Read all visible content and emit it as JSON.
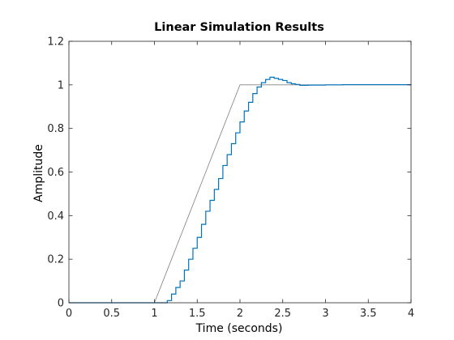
{
  "chart_data": {
    "type": "line",
    "title": "Linear Simulation Results",
    "xlabel": "Time (seconds)",
    "ylabel": "Amplitude",
    "xlim": [
      0,
      4
    ],
    "ylim": [
      0,
      1.2
    ],
    "xticks": [
      0,
      0.5,
      1,
      1.5,
      2,
      2.5,
      3,
      3.5,
      4
    ],
    "xtick_labels": [
      "0",
      "0.5",
      "1",
      "1.5",
      "2",
      "2.5",
      "3",
      "3.5",
      "4"
    ],
    "yticks": [
      0,
      0.2,
      0.4,
      0.6,
      0.8,
      1,
      1.2
    ],
    "ytick_labels": [
      "0",
      "0.2",
      "0.4",
      "0.6",
      "0.8",
      "1",
      "1.2"
    ],
    "grid": false,
    "series": [
      {
        "style": "line",
        "color": "#808080",
        "x": [
          0,
          1.0,
          1.1,
          1.2,
          1.3,
          1.4,
          1.5,
          1.6,
          1.7,
          1.8,
          1.9,
          2.0,
          4.0
        ],
        "y": [
          0,
          0,
          0.1,
          0.2,
          0.3,
          0.4,
          0.5,
          0.6,
          0.7,
          0.8,
          0.9,
          1.0,
          1.0
        ]
      },
      {
        "style": "step",
        "color": "#0072BD",
        "x": [
          0,
          1.1,
          1.15,
          1.2,
          1.25,
          1.3,
          1.35,
          1.4,
          1.45,
          1.5,
          1.55,
          1.6,
          1.65,
          1.7,
          1.75,
          1.8,
          1.85,
          1.9,
          1.95,
          2.0,
          2.05,
          2.1,
          2.15,
          2.2,
          2.25,
          2.3,
          2.35,
          2.4,
          2.45,
          2.5,
          2.55,
          2.6,
          2.65,
          2.7,
          2.75,
          2.8,
          2.9,
          3.0,
          3.1,
          3.2,
          4.0
        ],
        "y": [
          0,
          0,
          0.01,
          0.04,
          0.07,
          0.1,
          0.15,
          0.2,
          0.25,
          0.3,
          0.36,
          0.42,
          0.47,
          0.52,
          0.57,
          0.63,
          0.68,
          0.73,
          0.78,
          0.83,
          0.88,
          0.92,
          0.96,
          0.99,
          1.01,
          1.025,
          1.035,
          1.03,
          1.025,
          1.02,
          1.01,
          1.005,
          1.002,
          0.998,
          0.998,
          0.999,
          0.999,
          1.0,
          1.0,
          1.001,
          1.0
        ]
      }
    ]
  }
}
